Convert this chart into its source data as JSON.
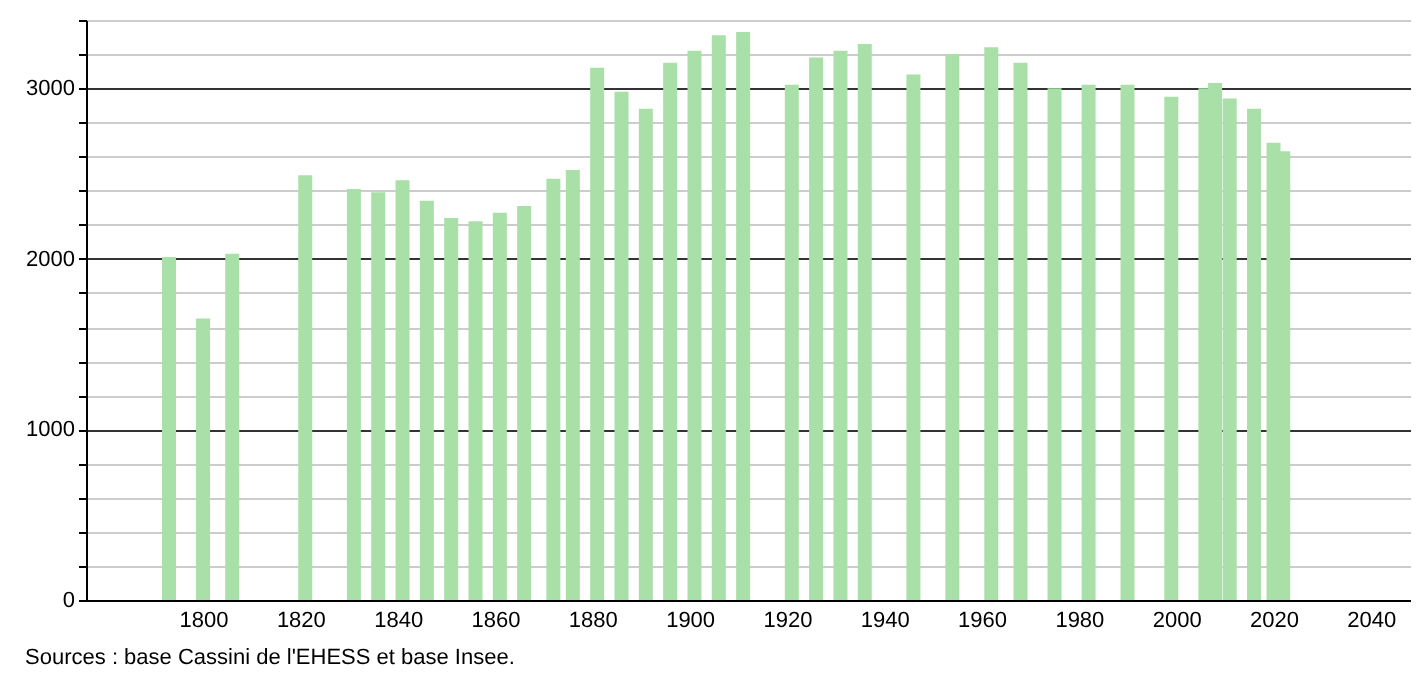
{
  "chart_data": {
    "type": "bar",
    "x": [
      1793,
      1800,
      1806,
      1821,
      1831,
      1836,
      1841,
      1846,
      1851,
      1856,
      1861,
      1866,
      1872,
      1876,
      1881,
      1886,
      1891,
      1896,
      1901,
      1906,
      1911,
      1921,
      1926,
      1931,
      1936,
      1946,
      1954,
      1962,
      1968,
      1975,
      1982,
      1990,
      1999,
      2006,
      2008,
      2011,
      2016,
      2020,
      2022
    ],
    "values": [
      2010,
      1650,
      2030,
      2490,
      2410,
      2390,
      2460,
      2340,
      2240,
      2220,
      2270,
      2310,
      2470,
      2520,
      3120,
      2980,
      2880,
      3150,
      3220,
      3310,
      3330,
      3020,
      3180,
      3220,
      3260,
      3080,
      3200,
      3240,
      3150,
      3000,
      3020,
      3020,
      2950,
      3000,
      3030,
      2940,
      2880,
      2680,
      2630
    ],
    "color": "#a8e0a8",
    "xlim": [
      1778,
      2046
    ],
    "xticks": [
      1800,
      1820,
      1840,
      1860,
      1880,
      1900,
      1920,
      1940,
      1960,
      1980,
      2000,
      2020,
      2040
    ],
    "ylim": [
      0,
      3400
    ],
    "yticks": [
      0,
      {
        "value": 200,
        "label": null
      },
      {
        "value": 400,
        "label": null
      },
      {
        "value": 600,
        "label": null
      },
      {
        "value": 800,
        "label": null
      },
      1000,
      {
        "value": 1200,
        "label": null
      },
      {
        "value": 1400,
        "label": null
      },
      {
        "value": 1600,
        "label": null
      },
      {
        "value": 1800,
        "label": null
      },
      2000,
      {
        "value": 2200,
        "label": null
      },
      {
        "value": 2400,
        "label": null
      },
      {
        "value": 2600,
        "label": null
      },
      {
        "value": 2800,
        "label": null
      },
      3000,
      {
        "value": 3200,
        "label": null
      },
      {
        "value": 3400,
        "label": null
      }
    ],
    "grid": "y",
    "annotations": [
      "Sources : base Cassini de l'EHESS et base Insee."
    ]
  }
}
